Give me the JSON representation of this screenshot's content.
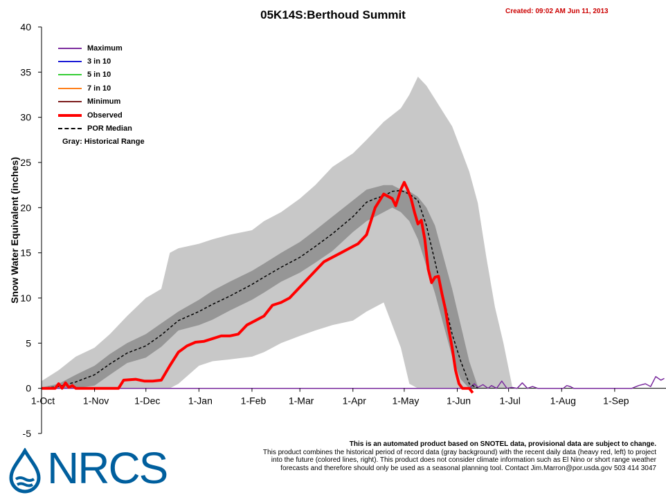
{
  "title": "05K14S:Berthoud Summit",
  "created": "Created: 09:02 AM Jun 11, 2013",
  "footer": {
    "line1": "This is an automated product based on SNOTEL data, provisional data are subject to change.",
    "line2": "This product combines the historical period of record data (gray background) with the recent daily data (heavy red, left) to project",
    "line3": "into the future (colored lines, right). This product does not consider climate information such as El Nino or short range weather",
    "line4": "forecasts and therefore should only be used as a seasonal planning tool. Contact Jim.Marron@por.usda.gov 503 414 3047"
  },
  "logo": {
    "text": "NRCS",
    "icon": "water-drop-icon"
  },
  "colors": {
    "maximum": "#7b2c9e",
    "three_in_ten": "#1a1ad6",
    "five_in_ten": "#33cc33",
    "seven_in_ten": "#ff7f1a",
    "minimum": "#7a1a1a",
    "observed": "#ff0000",
    "median": "#000000",
    "range_outer": "#c8c8c8",
    "range_inner": "#969696"
  },
  "chart_data": {
    "type": "line",
    "title": "05K14S:Berthoud Summit",
    "ylabel": "Snow Water Equivalent (inches)",
    "xlabel": "",
    "ylim": [
      -5,
      40
    ],
    "yticks": [
      -5,
      0,
      5,
      10,
      15,
      20,
      25,
      30,
      35,
      40
    ],
    "xlim": [
      0,
      365
    ],
    "xticks": [
      {
        "label": "1-Oct",
        "day": 0
      },
      {
        "label": "1-Nov",
        "day": 31
      },
      {
        "label": "1-Dec",
        "day": 61
      },
      {
        "label": "1-Jan",
        "day": 92
      },
      {
        "label": "1-Feb",
        "day": 123
      },
      {
        "label": "1-Mar",
        "day": 151
      },
      {
        "label": "1-Apr",
        "day": 182
      },
      {
        "label": "1-May",
        "day": 212
      },
      {
        "label": "1-Jun",
        "day": 243
      },
      {
        "label": "1-Jul",
        "day": 273
      },
      {
        "label": "1-Aug",
        "day": 304
      },
      {
        "label": "1-Sep",
        "day": 335
      }
    ],
    "grid": false,
    "legend_position": "top-left",
    "legend": {
      "items": [
        {
          "key": "maximum",
          "label": "Maximum"
        },
        {
          "key": "three_in_ten",
          "label": "3 in 10"
        },
        {
          "key": "five_in_ten",
          "label": "5 in 10"
        },
        {
          "key": "seven_in_ten",
          "label": "7 in 10"
        },
        {
          "key": "minimum",
          "label": "Minimum"
        },
        {
          "key": "observed",
          "label": "Observed"
        },
        {
          "key": "median",
          "label": "POR Median"
        }
      ],
      "gray_note": "Gray: Historical Range"
    },
    "series": [
      {
        "name": "Maximum",
        "x": [
          0,
          250,
          253,
          255,
          258,
          261,
          263,
          266,
          269,
          272,
          275,
          278,
          281,
          284,
          287,
          290,
          305,
          307,
          309,
          311,
          345,
          349,
          353,
          356,
          359,
          362,
          364
        ],
        "y": [
          0,
          0,
          0.5,
          0.1,
          0.4,
          0,
          0.3,
          0,
          0.8,
          0,
          0.1,
          0,
          0.6,
          0,
          0.2,
          0,
          0,
          0.3,
          0.2,
          0,
          0,
          0.3,
          0.5,
          0.2,
          1.3,
          0.9,
          1.1
        ]
      },
      {
        "name": "Observed",
        "x": [
          0,
          8,
          10,
          12,
          14,
          16,
          18,
          20,
          22,
          24,
          30,
          45,
          48,
          55,
          60,
          65,
          70,
          75,
          80,
          85,
          90,
          95,
          100,
          105,
          110,
          115,
          120,
          125,
          130,
          135,
          140,
          145,
          150,
          155,
          160,
          165,
          170,
          175,
          180,
          185,
          190,
          195,
          200,
          205,
          207,
          210,
          212,
          214,
          216,
          218,
          220,
          222,
          224,
          226,
          228,
          230,
          232,
          234,
          236,
          238,
          240,
          242,
          244,
          246,
          248,
          250,
          252
        ],
        "y": [
          0,
          0,
          0.5,
          0,
          0.6,
          0.1,
          0.3,
          0,
          0,
          0,
          0,
          0,
          0.9,
          1.0,
          0.8,
          0.8,
          0.9,
          2.5,
          4.0,
          4.7,
          5.1,
          5.2,
          5.5,
          5.8,
          5.8,
          6.0,
          7.0,
          7.5,
          8.0,
          9.2,
          9.5,
          10.0,
          11.0,
          12.0,
          13.0,
          14.0,
          14.5,
          15.0,
          15.5,
          16.0,
          17.0,
          20.0,
          21.5,
          21.0,
          20.2,
          22.0,
          22.8,
          22.0,
          21.0,
          19.5,
          18.2,
          18.6,
          16.5,
          13.2,
          11.7,
          12.3,
          12.4,
          10.5,
          8.8,
          6.5,
          4.5,
          2.0,
          0.5,
          0,
          0,
          0,
          -0.5
        ]
      },
      {
        "name": "POR Median",
        "x": [
          0,
          10,
          20,
          31,
          40,
          50,
          61,
          70,
          80,
          92,
          100,
          110,
          123,
          130,
          140,
          151,
          160,
          170,
          182,
          190,
          195,
          200,
          205,
          210,
          215,
          220,
          225,
          230,
          235,
          240,
          245,
          250,
          255
        ],
        "y": [
          0,
          0.2,
          0.7,
          1.5,
          2.7,
          3.9,
          4.7,
          5.9,
          7.5,
          8.5,
          9.3,
          10.2,
          11.5,
          12.3,
          13.4,
          14.5,
          15.7,
          17.1,
          19.0,
          20.6,
          21.0,
          21.3,
          21.8,
          21.9,
          21.5,
          20.8,
          18.0,
          14.0,
          10.0,
          6.0,
          3.0,
          0.5,
          0
        ]
      }
    ],
    "historical_range": {
      "outer": {
        "x": [
          0,
          10,
          20,
          31,
          40,
          50,
          61,
          70,
          75,
          80,
          92,
          100,
          110,
          123,
          130,
          140,
          151,
          160,
          170,
          182,
          190,
          200,
          210,
          215,
          220,
          225,
          230,
          235,
          240,
          245,
          250,
          255,
          260,
          265,
          270,
          275
        ],
        "upper": [
          0.8,
          2.0,
          3.5,
          4.5,
          6.0,
          8.0,
          10.0,
          11.0,
          15.0,
          15.5,
          16.0,
          16.5,
          17.0,
          17.5,
          18.5,
          19.5,
          21.0,
          22.5,
          24.5,
          26.0,
          27.5,
          29.5,
          31.0,
          32.5,
          34.5,
          33.5,
          32.0,
          30.5,
          29.0,
          26.5,
          24.0,
          20.5,
          14.5,
          9.0,
          5.0,
          0.3
        ],
        "lower": [
          0,
          0,
          0,
          0,
          0,
          0,
          0,
          0,
          0,
          0.5,
          2.5,
          3.0,
          3.2,
          3.5,
          4.0,
          5.0,
          5.8,
          6.4,
          7.0,
          7.5,
          8.5,
          9.5,
          4.5,
          0.5,
          0,
          0,
          0,
          0,
          0,
          0,
          0,
          0,
          0,
          0,
          0,
          0
        ]
      },
      "inner": {
        "x": [
          0,
          10,
          20,
          31,
          40,
          50,
          61,
          70,
          80,
          92,
          100,
          110,
          123,
          130,
          140,
          151,
          160,
          170,
          182,
          190,
          200,
          205,
          210,
          215,
          220,
          225,
          230,
          235,
          240,
          245,
          250,
          255
        ],
        "upper": [
          0.1,
          0.5,
          1.5,
          2.5,
          3.8,
          5.0,
          6.0,
          7.2,
          8.5,
          9.8,
          10.8,
          11.8,
          13.0,
          13.8,
          15.0,
          16.2,
          17.5,
          19.0,
          20.8,
          22.0,
          22.5,
          22.5,
          22.0,
          21.8,
          21.2,
          20.0,
          18.0,
          14.5,
          11.0,
          7.0,
          3.0,
          0.2
        ],
        "lower": [
          0,
          0,
          0,
          0.3,
          1.5,
          2.8,
          3.4,
          4.6,
          6.4,
          7.0,
          7.6,
          8.6,
          9.8,
          10.6,
          11.8,
          12.8,
          13.9,
          15.2,
          17.3,
          18.5,
          19.5,
          20.0,
          19.5,
          18.5,
          16.5,
          13.5,
          10.5,
          7.0,
          3.5,
          1.0,
          0,
          0
        ]
      }
    }
  }
}
